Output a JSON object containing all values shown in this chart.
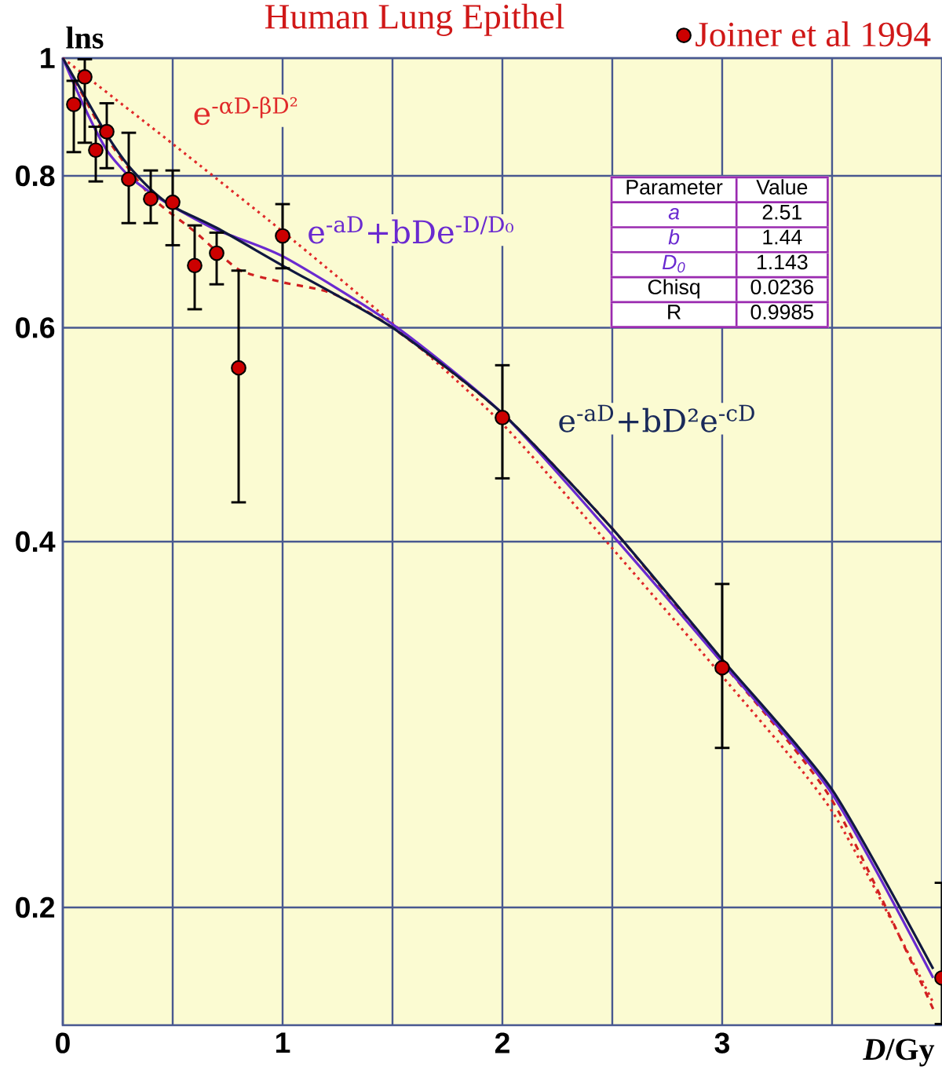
{
  "chart_data": {
    "type": "line",
    "title": "Human Lung Epithel",
    "xlabel": "*D*/Gy",
    "ylabel": "lns",
    "xlim": [
      0,
      4
    ],
    "ylim": [
      0.16,
      1
    ],
    "log": "y",
    "grid": true,
    "legend": "top right",
    "xticks": [
      0,
      {
        "value": 0.5,
        "label": null
      },
      1,
      {
        "value": 1.5,
        "label": null
      },
      2,
      {
        "value": 2.5,
        "label": null
      },
      3,
      {
        "value": 3.5,
        "label": null
      }
    ],
    "yticks": [
      0.2,
      0.4,
      0.6,
      0.8,
      1
    ],
    "series": [
      {
        "color": "#e02a2a",
        "line_style": "dotted",
        "x": [
          0,
          0.5,
          1,
          1.5,
          2,
          2.5,
          3,
          3.5,
          3.96
        ],
        "values": [
          1,
          0.85,
          0.72,
          0.605,
          0.5,
          0.395,
          0.31,
          0.24,
          0.167
        ]
      },
      {
        "color": "#d02020",
        "line_style": "dashed",
        "x": [
          0,
          0.2,
          0.4,
          0.6,
          0.8,
          1,
          1.23,
          1.5,
          2,
          2.5,
          3,
          3.5,
          3.96
        ],
        "values": [
          1,
          0.86,
          0.77,
          0.72,
          0.67,
          0.654,
          0.64,
          0.6,
          0.51,
          0.41,
          0.318,
          0.245,
          0.165
        ]
      },
      {
        "color": "#6a2ad0",
        "line_style": "solid",
        "x": [
          0,
          0.1,
          0.2,
          0.3,
          0.4,
          0.5,
          0.7,
          1,
          1.5,
          2,
          2.5,
          3,
          3.5,
          3.96
        ],
        "values": [
          1,
          0.91,
          0.84,
          0.8,
          0.775,
          0.755,
          0.722,
          0.687,
          0.604,
          0.51,
          0.405,
          0.318,
          0.248,
          0.175
        ]
      },
      {
        "color": "#101840",
        "line_style": "solid",
        "x": [
          0,
          0.1,
          0.2,
          0.3,
          0.4,
          0.5,
          0.7,
          1,
          1.5,
          2,
          2.5,
          3,
          3.5,
          3.96
        ],
        "values": [
          1,
          0.93,
          0.865,
          0.815,
          0.78,
          0.755,
          0.725,
          0.675,
          0.6,
          0.51,
          0.41,
          0.32,
          0.25,
          0.178
        ]
      },
      {
        "type": "scatter",
        "name": "Joiner et al 1994",
        "color": "#cc0000",
        "marker": "circle",
        "x": [
          0.05,
          0.1,
          0.15,
          0.2,
          0.3,
          0.4,
          0.5,
          0.6,
          0.7,
          0.8,
          1.0,
          2.0,
          3.0,
          4.0
        ],
        "values": [
          0.916,
          0.965,
          0.84,
          0.87,
          0.795,
          0.766,
          0.761,
          0.675,
          0.691,
          0.556,
          0.714,
          0.506,
          0.315,
          0.175
        ],
        "errors": [
          [
            0.835,
            0.96
          ],
          [
            0.85,
            1.0
          ],
          [
            0.79,
            0.88
          ],
          [
            0.81,
            0.92
          ],
          [
            0.73,
            0.87
          ],
          [
            0.73,
            0.81
          ],
          [
            0.7,
            0.81
          ],
          [
            0.62,
            0.73
          ],
          [
            0.65,
            0.72
          ],
          [
            0.43,
            0.67
          ],
          [
            0.67,
            0.76
          ],
          [
            0.45,
            0.56
          ],
          [
            0.27,
            0.37
          ],
          [
            0.16,
            0.21
          ]
        ]
      }
    ],
    "annotations": [
      "e$^{-αD-βD²}$",
      "e$^{-aD}$+bDe$^{-D/D₀}$",
      "e$^{-aD}$+bD²e$^{-cD}$",
      "Parameter",
      "Value",
      "a",
      "2.51",
      "b",
      "1.44",
      "D$_{0}$",
      "1.143",
      "Chisq",
      "0.0236",
      "R",
      "0.9985"
    ]
  }
}
